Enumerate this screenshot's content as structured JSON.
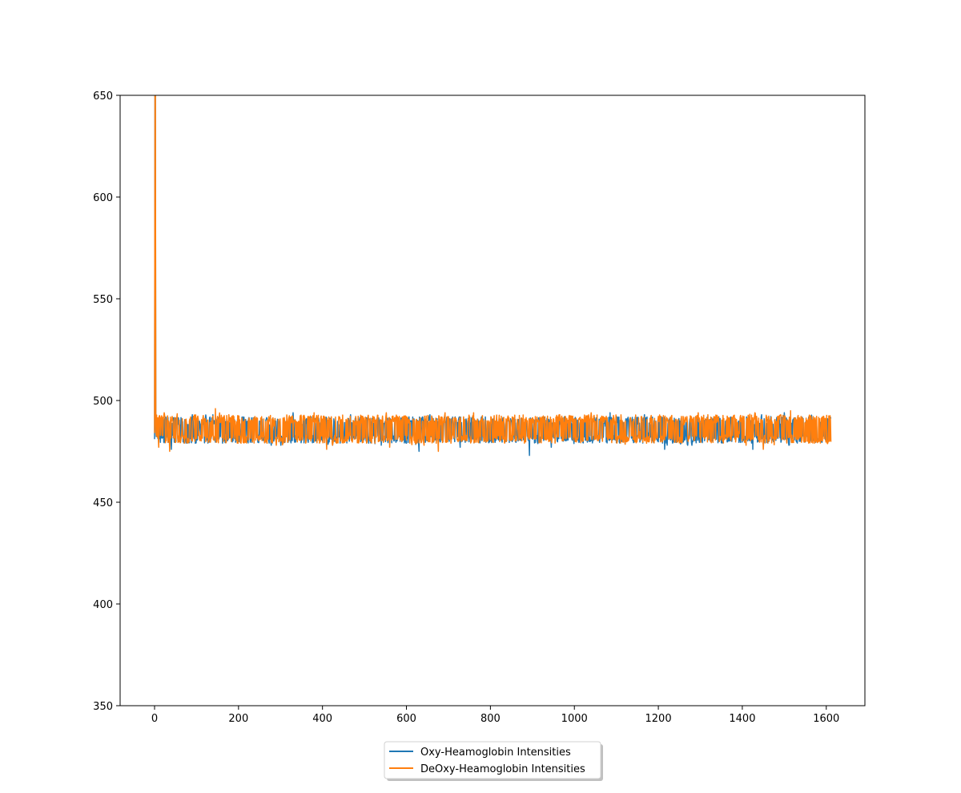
{
  "chart_data": {
    "type": "line",
    "title": "",
    "xlabel": "",
    "ylabel": "",
    "xlim": [
      -82,
      1692
    ],
    "ylim": [
      350,
      650
    ],
    "x_ticks": [
      0,
      200,
      400,
      600,
      800,
      1000,
      1200,
      1400,
      1600
    ],
    "y_ticks": [
      350,
      400,
      450,
      500,
      550,
      600,
      650
    ],
    "grid": false,
    "legend_position": "bottom-center",
    "x_range": [
      0,
      1611
    ],
    "series": [
      {
        "name": "Oxy-Heamoglobin Intensities",
        "color": "#1f77b4",
        "initial_x": [
          0,
          1,
          2,
          3
        ],
        "initial_y": [
          481,
          650,
          650,
          486
        ],
        "band_low": 479,
        "band_high": 492,
        "min_dips": [
          [
            40,
            476
          ],
          [
            540,
            478
          ],
          [
            630,
            475
          ],
          [
            728,
            477
          ],
          [
            893,
            473
          ],
          [
            945,
            477
          ],
          [
            1215,
            476
          ],
          [
            1425,
            476
          ]
        ],
        "max_spikes": [
          [
            330,
            494
          ],
          [
            1085,
            494
          ],
          [
            1500,
            494
          ]
        ]
      },
      {
        "name": "DeOxy-Heamoglobin Intensities",
        "color": "#ff7f0e",
        "initial_x": [
          0,
          1,
          2,
          3
        ],
        "initial_y": [
          484,
          650,
          650,
          488
        ],
        "band_low": 479,
        "band_high": 493,
        "min_dips": [
          [
            10,
            477
          ],
          [
            36,
            475
          ],
          [
            290,
            478
          ],
          [
            410,
            476
          ],
          [
            560,
            477
          ],
          [
            676,
            475
          ],
          [
            1450,
            476
          ]
        ],
        "max_spikes": [
          [
            145,
            496
          ],
          [
            380,
            494
          ],
          [
            760,
            494
          ],
          [
            1040,
            494
          ],
          [
            1295,
            494
          ],
          [
            1515,
            495
          ]
        ]
      }
    ]
  }
}
